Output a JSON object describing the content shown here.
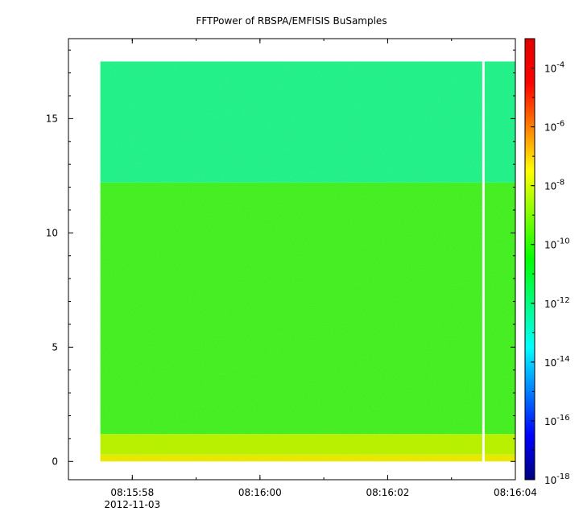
{
  "chart_data": {
    "type": "heatmap",
    "title": "FFTPower of RBSPA/EMFISIS  BuSamples",
    "xlabel": "",
    "ylabel": "",
    "x_ticks": [
      {
        "time": "08:15:58",
        "label": "08:15:58",
        "sublabel": "2012-11-03"
      },
      {
        "time": "08:16:00",
        "label": "08:16:00",
        "sublabel": ""
      },
      {
        "time": "08:16:02",
        "label": "08:16:02",
        "sublabel": ""
      },
      {
        "time": "08:16:04",
        "label": "08:16:04",
        "sublabel": ""
      }
    ],
    "xlim": [
      "08:15:57.0",
      "08:16:04.0"
    ],
    "y_ticks": [
      0,
      5,
      10,
      15
    ],
    "ylim": [
      -0.8,
      18.5
    ],
    "colorbar": {
      "scale": "log",
      "range": [
        1e-18,
        0.001
      ],
      "ticks": [
        {
          "base": "10",
          "exp": "-4",
          "value": 0.0001
        },
        {
          "base": "10",
          "exp": "-6",
          "value": 1e-06
        },
        {
          "base": "10",
          "exp": "-8",
          "value": 1e-08
        },
        {
          "base": "10",
          "exp": "-10",
          "value": 1e-10
        },
        {
          "base": "10",
          "exp": "-12",
          "value": 1e-12
        },
        {
          "base": "10",
          "exp": "-14",
          "value": 1e-14
        },
        {
          "base": "10",
          "exp": "-16",
          "value": 1e-16
        },
        {
          "base": "10",
          "exp": "-18",
          "value": 1e-18
        }
      ],
      "colors": [
        "#00007f",
        "#0000ff",
        "#007fff",
        "#00ffff",
        "#00ff7f",
        "#00ff00",
        "#7fff00",
        "#ffff00",
        "#ff7f00",
        "#ff0000",
        "#e00000"
      ]
    },
    "data_start": "08:15:57.5",
    "data_end": "08:16:04.0",
    "gap_time": "08:16:03.5",
    "y_max_data": 17.5,
    "bands": [
      {
        "y_from": 0,
        "y_to": 0.3,
        "power": 1e-08,
        "color": "#e8e800"
      },
      {
        "y_from": 0.3,
        "y_to": 1.2,
        "power": 1e-09,
        "color": "#b8f000"
      },
      {
        "y_from": 1.2,
        "y_to": 12.2,
        "power": 1e-10,
        "color": "#44ee22"
      },
      {
        "y_from": 12.2,
        "y_to": 17.5,
        "power": 1e-11,
        "color": "#22f08a"
      }
    ]
  }
}
